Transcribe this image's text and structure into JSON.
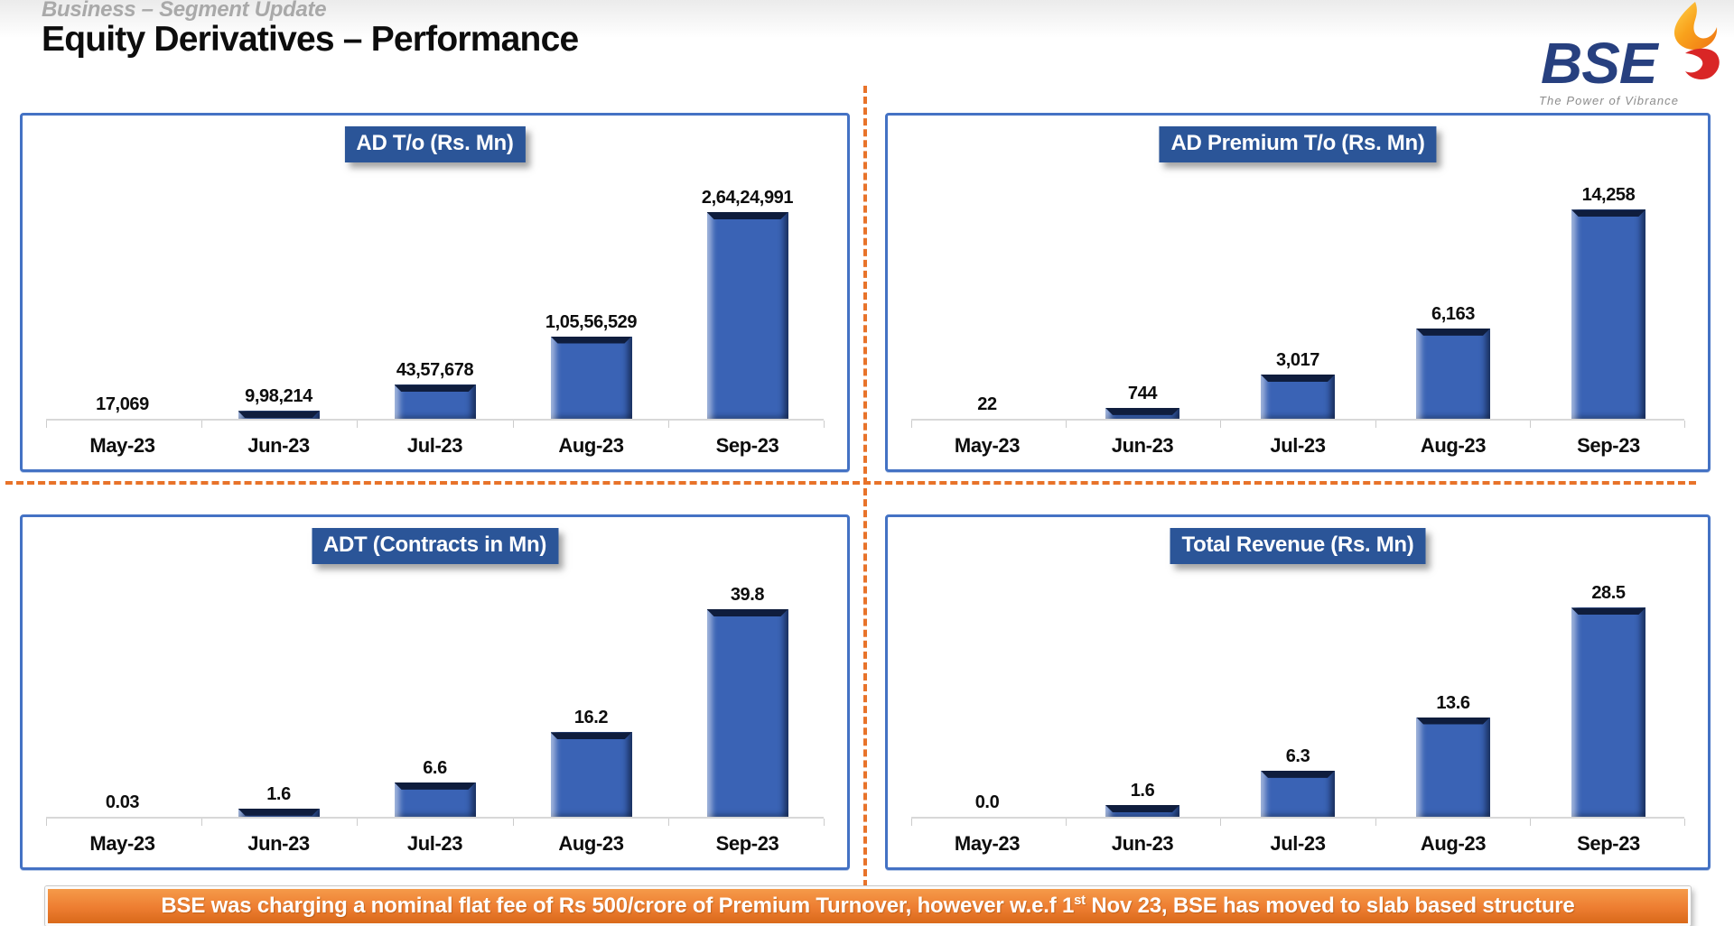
{
  "header": {
    "eyebrow": "Business – Segment Update",
    "title": "Equity Derivatives – Performance"
  },
  "logo": {
    "text": "BSE",
    "tagline": "The Power of Vibrance"
  },
  "categories": [
    "May-23",
    "Jun-23",
    "Jul-23",
    "Aug-23",
    "Sep-23"
  ],
  "chart_data": [
    {
      "type": "bar",
      "title": "AD T/o (Rs. Mn)",
      "categories": [
        "May-23",
        "Jun-23",
        "Jul-23",
        "Aug-23",
        "Sep-23"
      ],
      "values": [
        17069,
        998214,
        4357678,
        10556529,
        26424991
      ],
      "value_labels": [
        "17,069",
        "9,98,214",
        "43,57,678",
        "1,05,56,529",
        "2,64,24,991"
      ],
      "ylim": [
        0,
        30000000
      ],
      "grid": false,
      "legend_position": "none"
    },
    {
      "type": "bar",
      "title": "AD Premium T/o (Rs. Mn)",
      "categories": [
        "May-23",
        "Jun-23",
        "Jul-23",
        "Aug-23",
        "Sep-23"
      ],
      "values": [
        22,
        744,
        3017,
        6163,
        14258
      ],
      "value_labels": [
        "22",
        "744",
        "3,017",
        "6,163",
        "14,258"
      ],
      "ylim": [
        0,
        16000
      ],
      "grid": false,
      "legend_position": "none"
    },
    {
      "type": "bar",
      "title": "ADT (Contracts in Mn)",
      "categories": [
        "May-23",
        "Jun-23",
        "Jul-23",
        "Aug-23",
        "Sep-23"
      ],
      "values": [
        0.03,
        1.6,
        6.6,
        16.2,
        39.8
      ],
      "value_labels": [
        "0.03",
        "1.6",
        "6.6",
        "16.2",
        "39.8"
      ],
      "ylim": [
        0,
        45
      ],
      "grid": false,
      "legend_position": "none"
    },
    {
      "type": "bar",
      "title": "Total Revenue (Rs. Mn)",
      "categories": [
        "May-23",
        "Jun-23",
        "Jul-23",
        "Aug-23",
        "Sep-23"
      ],
      "values": [
        0.0,
        1.6,
        6.3,
        13.6,
        28.5
      ],
      "value_labels": [
        "0.0",
        "1.6",
        "6.3",
        "13.6",
        "28.5"
      ],
      "ylim": [
        0,
        32
      ],
      "grid": false,
      "legend_position": "none"
    }
  ],
  "banner": {
    "text_before": "BSE was charging a nominal flat fee of Rs 500/crore of Premium Turnover, however w.e.f 1",
    "superscript": "st",
    "text_after": " Nov 23, BSE has moved to slab based structure"
  },
  "colors": {
    "badge_blue": "#2b5598",
    "panel_border_blue": "#4472c4",
    "bar_blue": "#3a63b5",
    "bar_bevel_navy": "#0f1d3d",
    "divider_orange": "#e8732a",
    "banner_orange": "#ed7d31",
    "eyebrow_gray": "#a9a9a9",
    "logo_navy": "#27407f"
  }
}
